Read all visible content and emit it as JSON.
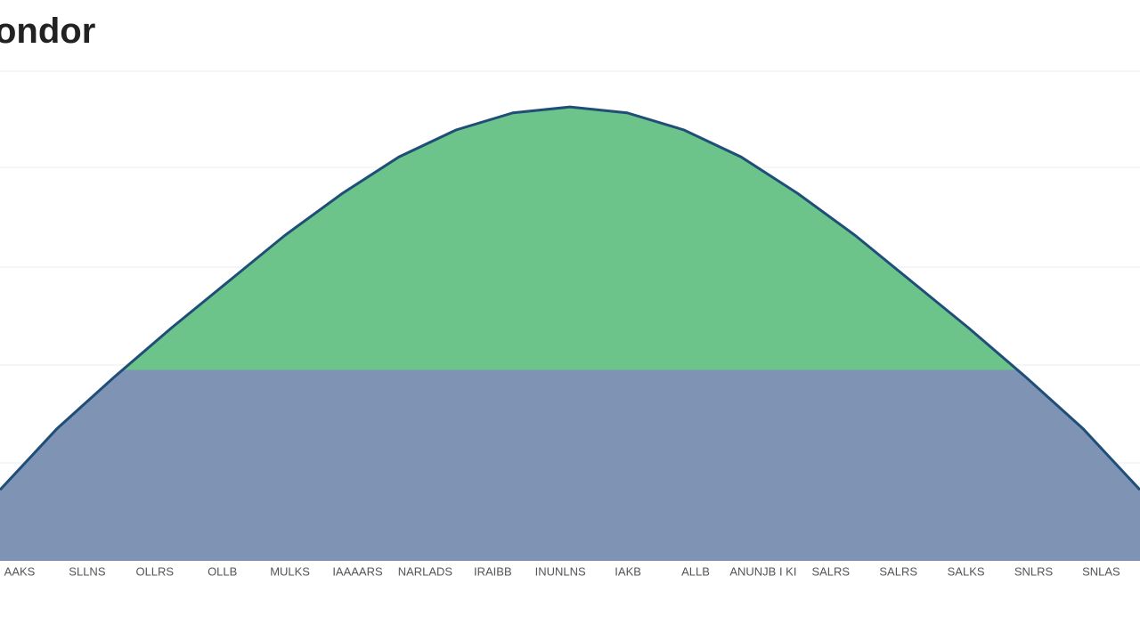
{
  "chart_data": {
    "type": "area",
    "title": "ondor",
    "x": [
      0,
      5,
      10,
      15,
      20,
      25,
      30,
      35,
      40,
      45,
      50,
      55,
      60,
      65,
      70,
      75,
      80,
      85,
      90,
      95,
      100
    ],
    "values": [
      14.5,
      27,
      37.5,
      47.5,
      57,
      66.5,
      75,
      82.5,
      88,
      91.5,
      92.7,
      91.5,
      88,
      82.5,
      75,
      66.5,
      57,
      47.5,
      37.5,
      27,
      14.5
    ],
    "xlim": [
      0,
      100
    ],
    "ylim": [
      0,
      100
    ],
    "split_value": 39,
    "color_above": "#6cc48a",
    "color_below": "#7f93b5",
    "line_color": "#1f4e79",
    "categories": [
      "AAKS",
      "SLLNS",
      "OLLRS",
      "OLLB",
      "MULKS",
      "IAAAARS",
      "NARLADS",
      "IRAIBB",
      "INUNLNS",
      "IAKB",
      "ALLB",
      "ANUNJB I KI",
      "SALRS",
      "SALRS",
      "SALKS",
      "SNLRS",
      "SNLAS"
    ]
  }
}
